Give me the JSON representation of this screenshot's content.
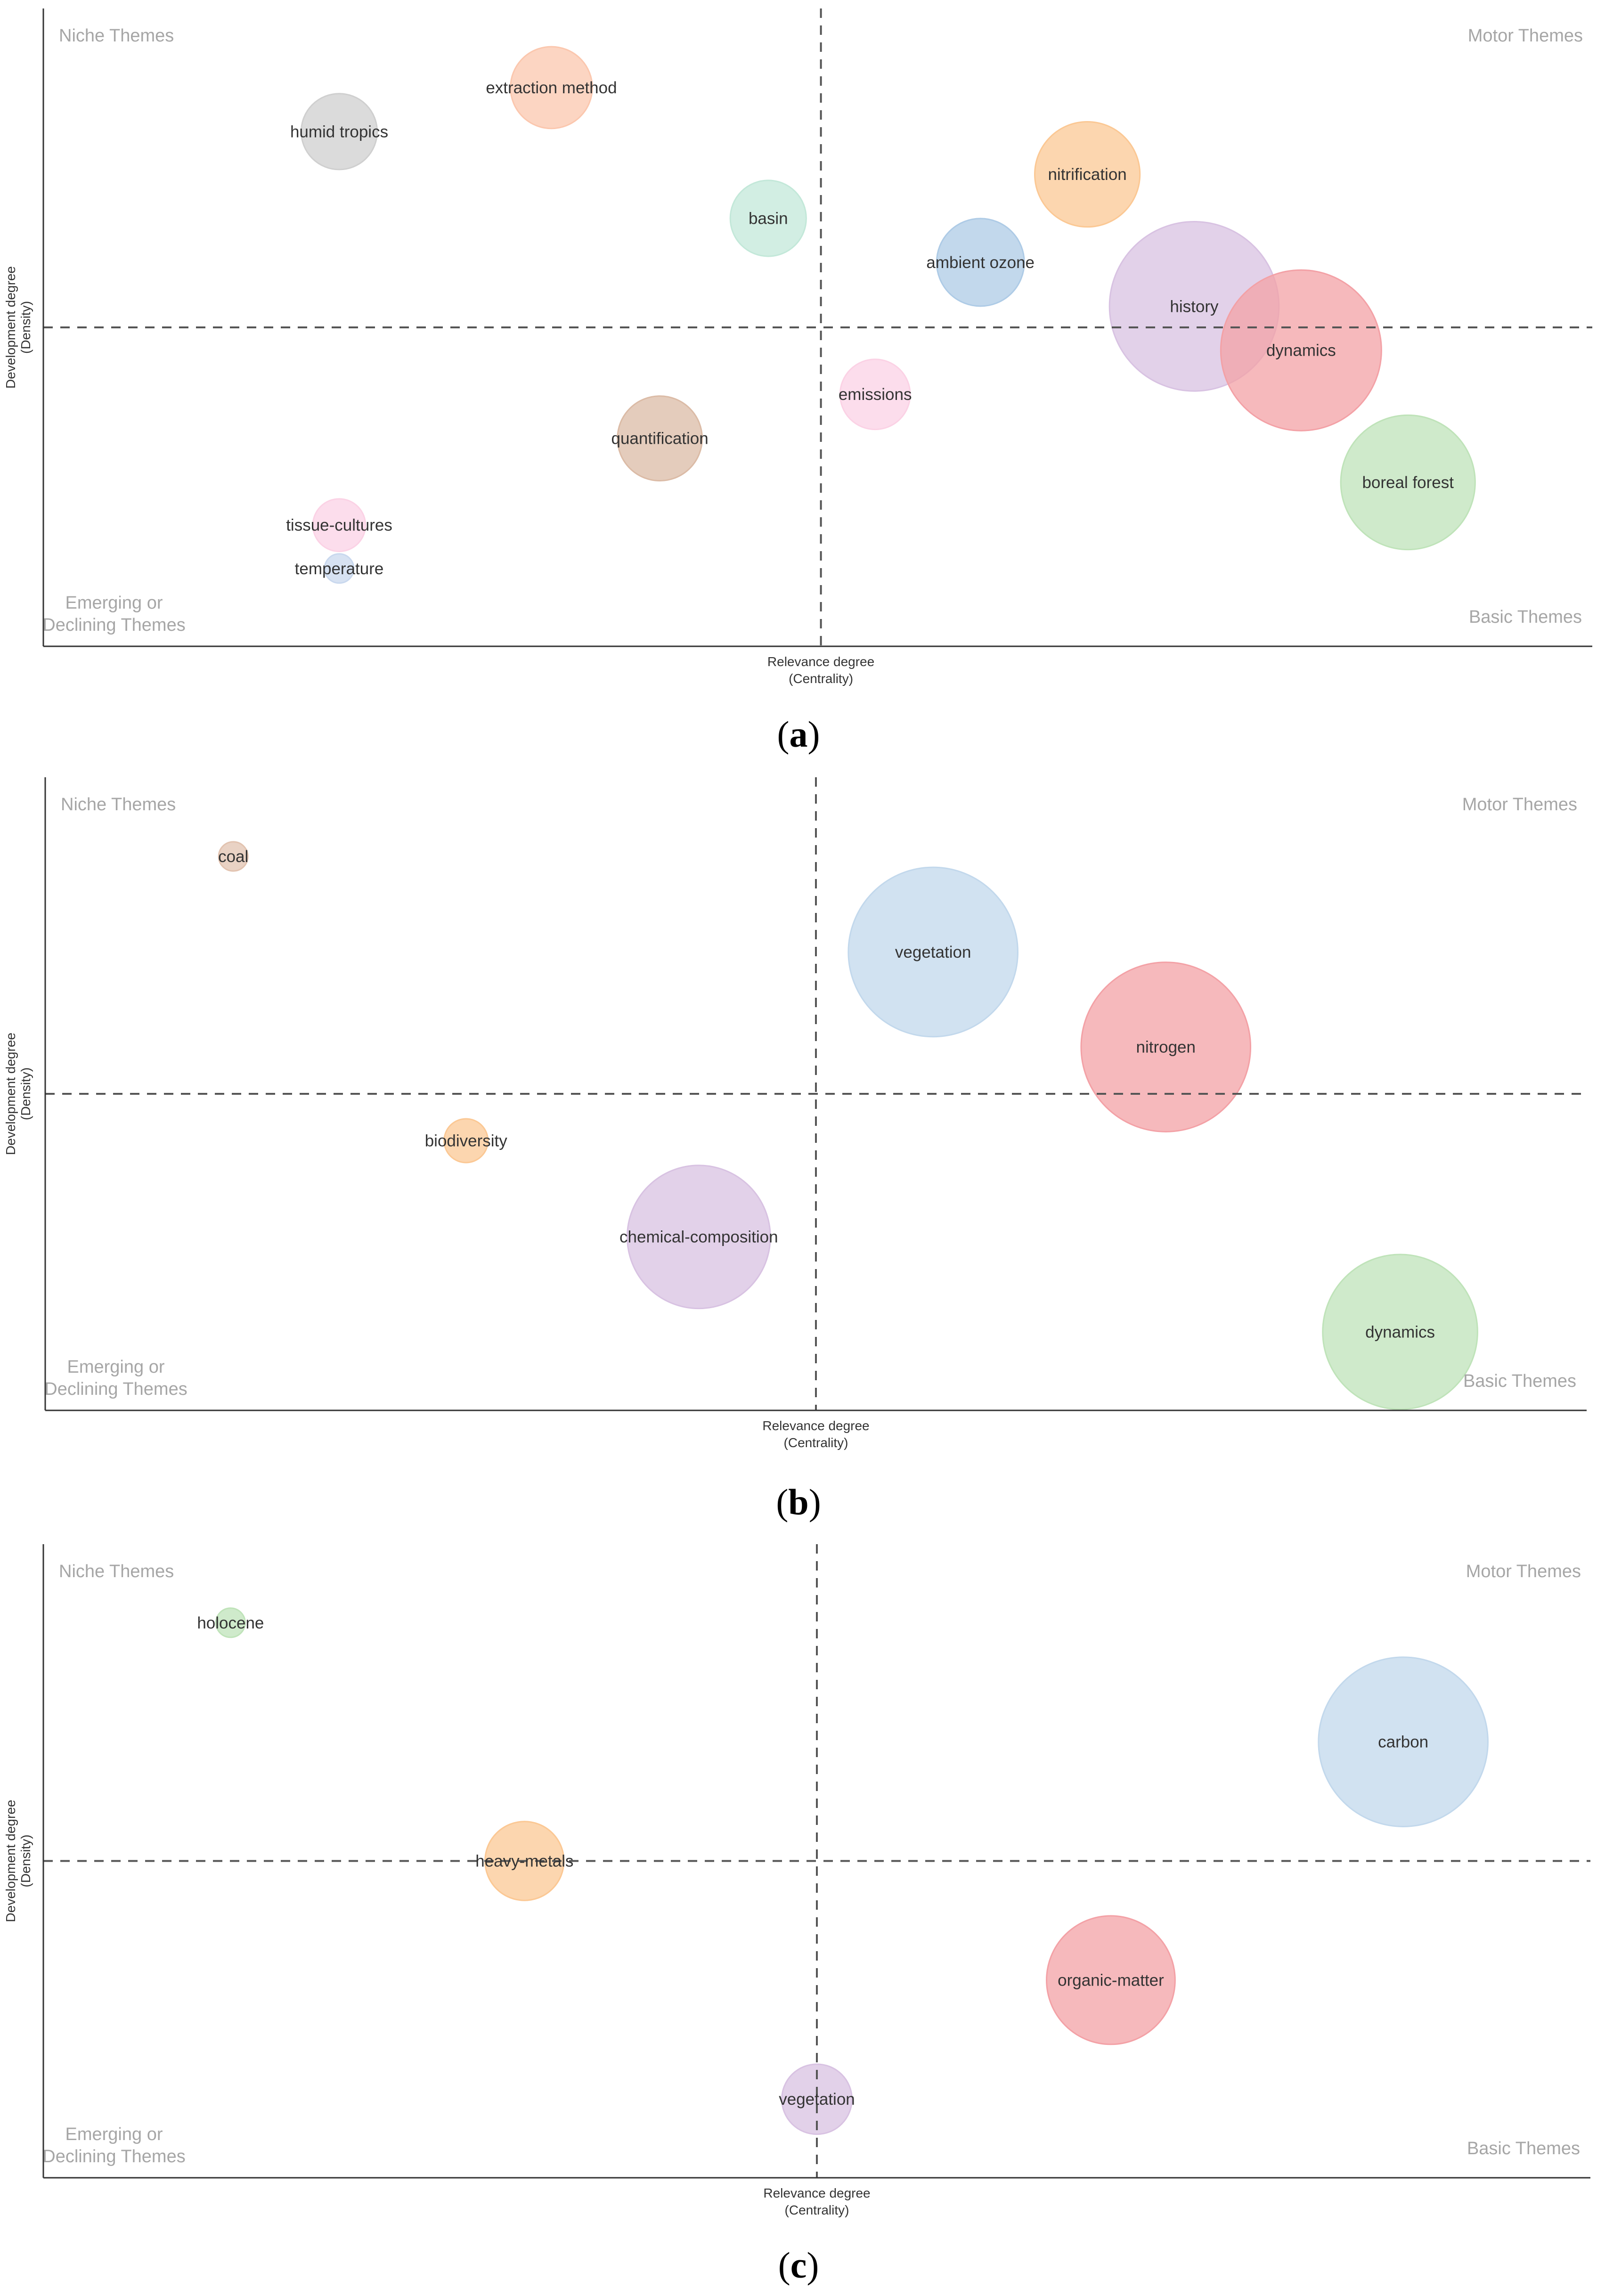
{
  "chart_data": [
    {
      "type": "scatter",
      "panel": "a",
      "caption": "a",
      "xlabel": "Relevance degree",
      "xlabel_sub": "(Centrality)",
      "ylabel": "Development degree",
      "ylabel_sub": "(Density)",
      "quadrants": {
        "top_left": "Niche Themes",
        "top_right": "Motor Themes",
        "bottom_left_1": "Emerging or",
        "bottom_left_2": "Declining Themes",
        "bottom_right": "Basic Themes"
      },
      "xlim": [
        0,
        100
      ],
      "ylim": [
        0,
        100
      ],
      "divider": {
        "x": 50.2,
        "y": 50
      },
      "points": [
        {
          "label": "extraction method",
          "x": 32.8,
          "y": 87.6,
          "size": 28,
          "color": "#fbc7ae"
        },
        {
          "label": "humid tropics",
          "x": 19.1,
          "y": 80.7,
          "size": 26,
          "color": "#cfcfcf"
        },
        {
          "label": "nitrification",
          "x": 67.4,
          "y": 74.0,
          "size": 36,
          "color": "#fbc894"
        },
        {
          "label": "basin",
          "x": 46.8,
          "y": 67.1,
          "size": 26,
          "color": "#c3e8d9"
        },
        {
          "label": "ambient ozone",
          "x": 60.5,
          "y": 60.2,
          "size": 30,
          "color": "#aecbe6"
        },
        {
          "label": "history",
          "x": 74.3,
          "y": 53.3,
          "size": 58,
          "color": "#d8c2e2"
        },
        {
          "label": "dynamics",
          "x": 81.2,
          "y": 46.4,
          "size": 55,
          "color": "#f3a1a6"
        },
        {
          "label": "emissions",
          "x": 53.7,
          "y": 39.5,
          "size": 24,
          "color": "#fbd2e5"
        },
        {
          "label": "quantification",
          "x": 39.8,
          "y": 32.6,
          "size": 29,
          "color": "#dbbba6"
        },
        {
          "label": "boreal forest",
          "x": 88.1,
          "y": 25.7,
          "size": 46,
          "color": "#bfe3b9"
        },
        {
          "label": "tissue-cultures",
          "x": 19.1,
          "y": 19.0,
          "size": 18,
          "color": "#fbd2e5"
        },
        {
          "label": "temperature",
          "x": 19.1,
          "y": 12.2,
          "size": 10,
          "color": "#c9d8ee"
        }
      ]
    },
    {
      "type": "scatter",
      "panel": "b",
      "caption": "b",
      "xlabel": "Relevance degree",
      "xlabel_sub": "(Centrality)",
      "ylabel": "Development degree",
      "ylabel_sub": "(Density)",
      "quadrants": {
        "top_left": "Niche Themes",
        "top_right": "Motor Themes",
        "bottom_left_1": "Emerging or",
        "bottom_left_2": "Declining Themes",
        "bottom_right": "Basic Themes"
      },
      "xlim": [
        0,
        100
      ],
      "ylim": [
        0,
        100
      ],
      "divider": {
        "x": 50.0,
        "y": 50
      },
      "points": [
        {
          "label": "coal",
          "x": 12.2,
          "y": 87.5,
          "size": 10,
          "color": "#e2c3b0"
        },
        {
          "label": "vegetation",
          "x": 57.6,
          "y": 72.4,
          "size": 58,
          "color": "#c2d8ec"
        },
        {
          "label": "nitrogen",
          "x": 72.7,
          "y": 57.4,
          "size": 58,
          "color": "#f3a1a6"
        },
        {
          "label": "biodiversity",
          "x": 27.3,
          "y": 42.6,
          "size": 15,
          "color": "#fbc894"
        },
        {
          "label": "chemical-composition",
          "x": 42.4,
          "y": 27.4,
          "size": 49,
          "color": "#d8c2e2"
        },
        {
          "label": "dynamics",
          "x": 87.9,
          "y": 12.4,
          "size": 53,
          "color": "#bfe3b9"
        }
      ]
    },
    {
      "type": "scatter",
      "panel": "c",
      "caption": "c",
      "xlabel": "Relevance degree",
      "xlabel_sub": "(Centrality)",
      "ylabel": "Development degree",
      "ylabel_sub": "(Density)",
      "quadrants": {
        "top_left": "Niche Themes",
        "top_right": "Motor Themes",
        "bottom_left_1": "Emerging or",
        "bottom_left_2": "Declining Themes",
        "bottom_right": "Basic Themes"
      },
      "xlim": [
        0,
        100
      ],
      "ylim": [
        0,
        100
      ],
      "divider": {
        "x": 50.0,
        "y": 50
      },
      "points": [
        {
          "label": "holocene",
          "x": 12.1,
          "y": 87.6,
          "size": 10,
          "color": "#bfe3b9"
        },
        {
          "label": "carbon",
          "x": 87.9,
          "y": 68.8,
          "size": 58,
          "color": "#c2d8ec"
        },
        {
          "label": "heavy-metals",
          "x": 31.1,
          "y": 50.0,
          "size": 27,
          "color": "#fbc894"
        },
        {
          "label": "organic-matter",
          "x": 69.0,
          "y": 31.2,
          "size": 44,
          "color": "#f3a1a6"
        },
        {
          "label": "vegetation",
          "x": 50.0,
          "y": 12.4,
          "size": 24,
          "color": "#d8c2e2"
        }
      ]
    }
  ]
}
